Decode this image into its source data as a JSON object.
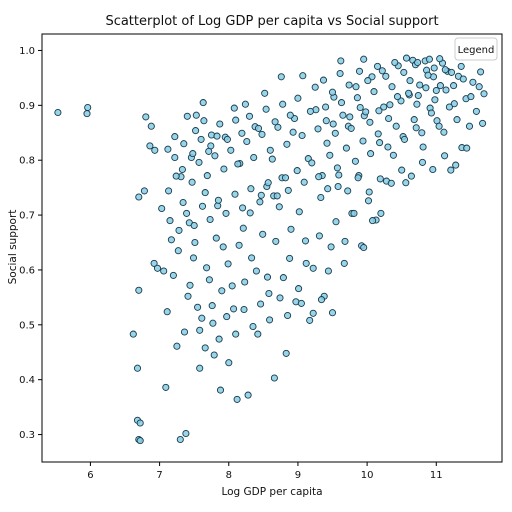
{
  "chart_data": {
    "type": "scatter",
    "title": "Scatterplot of Log GDP per capita vs Social support",
    "xlabel": "Log GDP per capita",
    "ylabel": "Social support",
    "xlim": [
      5.3,
      11.95
    ],
    "ylim": [
      0.25,
      1.03
    ],
    "xticks": [
      "6",
      "7",
      "8",
      "9",
      "10",
      "11"
    ],
    "yticks": [
      "0.3",
      "0.4",
      "0.5",
      "0.6",
      "0.7",
      "0.8",
      "0.9",
      "1.0"
    ],
    "legend": {
      "title": "Legend",
      "position": "top-right"
    },
    "grid": false,
    "marker": {
      "face": "#87cee6",
      "edge": "#1a3b4a"
    },
    "points": [
      [
        5.53,
        0.887
      ],
      [
        5.96,
        0.896
      ],
      [
        5.95,
        0.885
      ],
      [
        6.62,
        0.483
      ],
      [
        6.7,
        0.563
      ],
      [
        6.68,
        0.421
      ],
      [
        6.68,
        0.326
      ],
      [
        6.72,
        0.321
      ],
      [
        6.7,
        0.291
      ],
      [
        6.72,
        0.289
      ],
      [
        6.7,
        0.733
      ],
      [
        6.78,
        0.744
      ],
      [
        6.8,
        0.879
      ],
      [
        6.86,
        0.826
      ],
      [
        6.88,
        0.862
      ],
      [
        6.93,
        0.818
      ],
      [
        6.92,
        0.612
      ],
      [
        6.97,
        0.603
      ],
      [
        7.03,
        0.712
      ],
      [
        7.06,
        0.598
      ],
      [
        7.09,
        0.386
      ],
      [
        7.11,
        0.524
      ],
      [
        7.13,
        0.744
      ],
      [
        7.17,
        0.655
      ],
      [
        7.22,
        0.843
      ],
      [
        7.25,
        0.461
      ],
      [
        7.3,
        0.291
      ],
      [
        7.31,
        0.77
      ],
      [
        7.34,
        0.723
      ],
      [
        7.38,
        0.302
      ],
      [
        7.41,
        0.552
      ],
      [
        7.43,
        0.686
      ],
      [
        7.46,
        0.805
      ],
      [
        7.49,
        0.622
      ],
      [
        7.53,
        0.882
      ],
      [
        7.55,
        0.532
      ],
      [
        7.58,
        0.421
      ],
      [
        7.63,
        0.905
      ],
      [
        7.66,
        0.741
      ],
      [
        7.72,
        0.582
      ],
      [
        7.74,
        0.826
      ],
      [
        7.79,
        0.445
      ],
      [
        7.84,
        0.717
      ],
      [
        7.88,
        0.381
      ],
      [
        7.92,
        0.642
      ],
      [
        7.95,
        0.842
      ],
      [
        8.0,
        0.431
      ],
      [
        8.05,
        0.571
      ],
      [
        8.08,
        0.895
      ],
      [
        8.12,
        0.364
      ],
      [
        8.16,
        0.794
      ],
      [
        8.21,
        0.676
      ],
      [
        8.24,
        0.902
      ],
      [
        8.28,
        0.372
      ],
      [
        8.33,
        0.622
      ],
      [
        8.38,
        0.861
      ],
      [
        8.42,
        0.483
      ],
      [
        8.47,
        0.736
      ],
      [
        8.52,
        0.922
      ],
      [
        8.58,
        0.557
      ],
      [
        8.63,
        0.802
      ],
      [
        8.66,
        0.403
      ],
      [
        8.73,
        0.715
      ],
      [
        8.76,
        0.952
      ],
      [
        8.83,
        0.448
      ],
      [
        8.88,
        0.621
      ],
      [
        8.93,
        0.851
      ],
      [
        8.97,
        0.542
      ],
      [
        9.02,
        0.706
      ],
      [
        9.07,
        0.954
      ],
      [
        9.12,
        0.612
      ],
      [
        9.15,
        0.803
      ],
      [
        9.22,
        0.521
      ],
      [
        9.26,
        0.892
      ],
      [
        9.33,
        0.732
      ],
      [
        9.38,
        0.552
      ],
      [
        9.42,
        0.831
      ],
      [
        9.48,
        0.642
      ],
      [
        9.52,
        0.915
      ],
      [
        9.58,
        0.752
      ],
      [
        9.62,
        0.981
      ],
      [
        9.68,
        0.652
      ],
      [
        9.73,
        0.862
      ],
      [
        9.78,
        0.703
      ],
      [
        9.84,
        0.934
      ],
      [
        9.88,
        0.772
      ],
      [
        9.92,
        0.644
      ],
      [
        9.96,
        0.881
      ],
      [
        10.02,
        0.726
      ],
      [
        10.07,
        0.952
      ],
      [
        10.13,
        0.691
      ],
      [
        10.18,
        0.832
      ],
      [
        10.22,
        0.963
      ],
      [
        10.28,
        0.762
      ],
      [
        10.33,
        0.901
      ],
      [
        10.38,
        0.809
      ],
      [
        10.45,
        0.972
      ],
      [
        10.52,
        0.843
      ],
      [
        10.56,
        0.759
      ],
      [
        10.61,
        0.919
      ],
      [
        10.66,
        0.982
      ],
      [
        10.71,
        0.859
      ],
      [
        10.76,
        0.937
      ],
      [
        10.81,
        0.824
      ],
      [
        10.86,
        0.964
      ],
      [
        10.91,
        0.895
      ],
      [
        10.96,
        0.952
      ],
      [
        11.01,
        0.872
      ],
      [
        11.06,
        0.936
      ],
      [
        11.11,
        0.851
      ],
      [
        11.16,
        0.962
      ],
      [
        11.21,
        0.782
      ],
      [
        11.26,
        0.903
      ],
      [
        11.32,
        0.953
      ],
      [
        11.37,
        0.823
      ],
      [
        11.43,
        0.912
      ],
      [
        11.48,
        0.862
      ],
      [
        11.53,
        0.942
      ],
      [
        11.58,
        0.889
      ],
      [
        11.64,
        0.961
      ],
      [
        11.67,
        0.867
      ],
      [
        11.69,
        0.921
      ],
      [
        7.2,
        0.59
      ],
      [
        7.27,
        0.635
      ],
      [
        7.36,
        0.487
      ],
      [
        7.44,
        0.572
      ],
      [
        7.51,
        0.65
      ],
      [
        7.61,
        0.512
      ],
      [
        7.68,
        0.604
      ],
      [
        7.76,
        0.535
      ],
      [
        7.82,
        0.658
      ],
      [
        7.9,
        0.562
      ],
      [
        7.99,
        0.611
      ],
      [
        8.07,
        0.529
      ],
      [
        8.15,
        0.645
      ],
      [
        8.23,
        0.578
      ],
      [
        8.31,
        0.704
      ],
      [
        8.4,
        0.598
      ],
      [
        8.49,
        0.665
      ],
      [
        8.56,
        0.587
      ],
      [
        8.68,
        0.652
      ],
      [
        8.79,
        0.586
      ],
      [
        8.9,
        0.674
      ],
      [
        9.01,
        0.566
      ],
      [
        9.11,
        0.653
      ],
      [
        9.22,
        0.603
      ],
      [
        9.31,
        0.662
      ],
      [
        9.44,
        0.598
      ],
      [
        9.55,
        0.688
      ],
      [
        9.67,
        0.612
      ],
      [
        9.81,
        0.703
      ],
      [
        9.95,
        0.641
      ],
      [
        10.08,
        0.69
      ],
      [
        10.2,
        0.703
      ],
      [
        7.24,
        0.771
      ],
      [
        7.33,
        0.783
      ],
      [
        7.47,
        0.76
      ],
      [
        7.57,
        0.796
      ],
      [
        7.69,
        0.772
      ],
      [
        7.8,
        0.808
      ],
      [
        7.93,
        0.784
      ],
      [
        8.03,
        0.818
      ],
      [
        8.13,
        0.793
      ],
      [
        8.26,
        0.834
      ],
      [
        8.36,
        0.805
      ],
      [
        8.48,
        0.847
      ],
      [
        8.6,
        0.818
      ],
      [
        8.71,
        0.86
      ],
      [
        8.84,
        0.829
      ],
      [
        8.95,
        0.876
      ],
      [
        9.06,
        0.845
      ],
      [
        9.18,
        0.889
      ],
      [
        9.29,
        0.857
      ],
      [
        9.4,
        0.897
      ],
      [
        9.51,
        0.866
      ],
      [
        9.63,
        0.905
      ],
      [
        9.75,
        0.879
      ],
      [
        9.86,
        0.914
      ],
      [
        9.98,
        0.888
      ],
      [
        10.1,
        0.925
      ],
      [
        10.24,
        0.897
      ],
      [
        10.36,
        0.934
      ],
      [
        10.49,
        0.908
      ],
      [
        10.62,
        0.945
      ],
      [
        10.74,
        0.918
      ],
      [
        10.88,
        0.955
      ],
      [
        11.0,
        0.927
      ],
      [
        11.13,
        0.965
      ],
      [
        11.25,
        0.936
      ],
      [
        11.39,
        0.948
      ],
      [
        11.5,
        0.916
      ],
      [
        11.62,
        0.934
      ],
      [
        8.55,
        0.752
      ],
      [
        8.65,
        0.735
      ],
      [
        8.77,
        0.768
      ],
      [
        8.86,
        0.745
      ],
      [
        8.99,
        0.781
      ],
      [
        9.09,
        0.76
      ],
      [
        9.2,
        0.795
      ],
      [
        9.35,
        0.772
      ],
      [
        9.46,
        0.809
      ],
      [
        9.57,
        0.786
      ],
      [
        9.7,
        0.822
      ],
      [
        9.83,
        0.798
      ],
      [
        9.94,
        0.835
      ],
      [
        10.05,
        0.812
      ],
      [
        10.16,
        0.848
      ],
      [
        10.3,
        0.824
      ],
      [
        10.42,
        0.862
      ],
      [
        10.54,
        0.838
      ],
      [
        10.68,
        0.874
      ],
      [
        10.79,
        0.85
      ],
      [
        10.93,
        0.886
      ],
      [
        11.04,
        0.862
      ],
      [
        11.19,
        0.897
      ],
      [
        11.3,
        0.874
      ],
      [
        9.25,
        0.933
      ],
      [
        9.37,
        0.946
      ],
      [
        9.5,
        0.924
      ],
      [
        9.61,
        0.958
      ],
      [
        9.74,
        0.937
      ],
      [
        9.89,
        0.962
      ],
      [
        10.01,
        0.945
      ],
      [
        10.15,
        0.971
      ],
      [
        10.27,
        0.953
      ],
      [
        10.4,
        0.978
      ],
      [
        10.53,
        0.96
      ],
      [
        10.7,
        0.974
      ],
      [
        10.84,
        0.981
      ],
      [
        10.97,
        0.968
      ],
      [
        11.09,
        0.977
      ],
      [
        7.4,
        0.88
      ],
      [
        7.52,
        0.854
      ],
      [
        7.64,
        0.872
      ],
      [
        7.75,
        0.846
      ],
      [
        7.87,
        0.866
      ],
      [
        7.98,
        0.838
      ],
      [
        8.1,
        0.873
      ],
      [
        8.19,
        0.849
      ],
      [
        8.3,
        0.88
      ],
      [
        8.43,
        0.858
      ],
      [
        8.54,
        0.893
      ],
      [
        8.67,
        0.87
      ],
      [
        8.78,
        0.902
      ],
      [
        8.89,
        0.882
      ],
      [
        9.0,
        0.913
      ],
      [
        7.15,
        0.69
      ],
      [
        7.28,
        0.672
      ],
      [
        7.39,
        0.703
      ],
      [
        7.5,
        0.681
      ],
      [
        7.62,
        0.716
      ],
      [
        7.73,
        0.692
      ],
      [
        7.85,
        0.727
      ],
      [
        7.96,
        0.703
      ],
      [
        8.09,
        0.738
      ],
      [
        8.2,
        0.713
      ],
      [
        8.32,
        0.748
      ],
      [
        8.45,
        0.724
      ],
      [
        8.57,
        0.759
      ],
      [
        8.7,
        0.735
      ],
      [
        8.82,
        0.768
      ],
      [
        7.58,
        0.49
      ],
      [
        7.66,
        0.458
      ],
      [
        7.77,
        0.503
      ],
      [
        7.86,
        0.474
      ],
      [
        7.97,
        0.515
      ],
      [
        8.1,
        0.483
      ],
      [
        8.22,
        0.528
      ],
      [
        8.35,
        0.497
      ],
      [
        8.46,
        0.538
      ],
      [
        8.59,
        0.509
      ],
      [
        8.74,
        0.549
      ],
      [
        8.85,
        0.517
      ],
      [
        9.05,
        0.539
      ],
      [
        9.17,
        0.508
      ],
      [
        9.34,
        0.546
      ],
      [
        9.5,
        0.522
      ],
      [
        9.3,
        0.77
      ],
      [
        9.43,
        0.748
      ],
      [
        9.59,
        0.773
      ],
      [
        9.72,
        0.744
      ],
      [
        9.87,
        0.768
      ],
      [
        10.03,
        0.742
      ],
      [
        10.19,
        0.766
      ],
      [
        10.35,
        0.758
      ],
      [
        10.5,
        0.782
      ],
      [
        10.64,
        0.771
      ],
      [
        10.8,
        0.796
      ],
      [
        10.95,
        0.783
      ],
      [
        11.12,
        0.808
      ],
      [
        11.28,
        0.791
      ],
      [
        11.44,
        0.822
      ],
      [
        7.12,
        0.82
      ],
      [
        7.22,
        0.805
      ],
      [
        7.35,
        0.83
      ],
      [
        7.48,
        0.812
      ],
      [
        7.6,
        0.838
      ],
      [
        7.71,
        0.816
      ],
      [
        7.83,
        0.844
      ],
      [
        9.95,
        0.984
      ],
      [
        10.57,
        0.986
      ],
      [
        10.73,
        0.978
      ],
      [
        10.9,
        0.984
      ],
      [
        11.05,
        0.985
      ],
      [
        11.22,
        0.96
      ],
      [
        11.36,
        0.971
      ],
      [
        10.85,
        0.932
      ],
      [
        10.98,
        0.91
      ],
      [
        11.14,
        0.928
      ],
      [
        10.72,
        0.902
      ],
      [
        10.6,
        0.922
      ],
      [
        10.44,
        0.916
      ],
      [
        10.31,
        0.876
      ],
      [
        10.17,
        0.89
      ],
      [
        10.04,
        0.869
      ],
      [
        9.9,
        0.896
      ],
      [
        9.77,
        0.858
      ],
      [
        9.65,
        0.882
      ],
      [
        9.54,
        0.849
      ],
      [
        9.41,
        0.872
      ]
    ]
  }
}
